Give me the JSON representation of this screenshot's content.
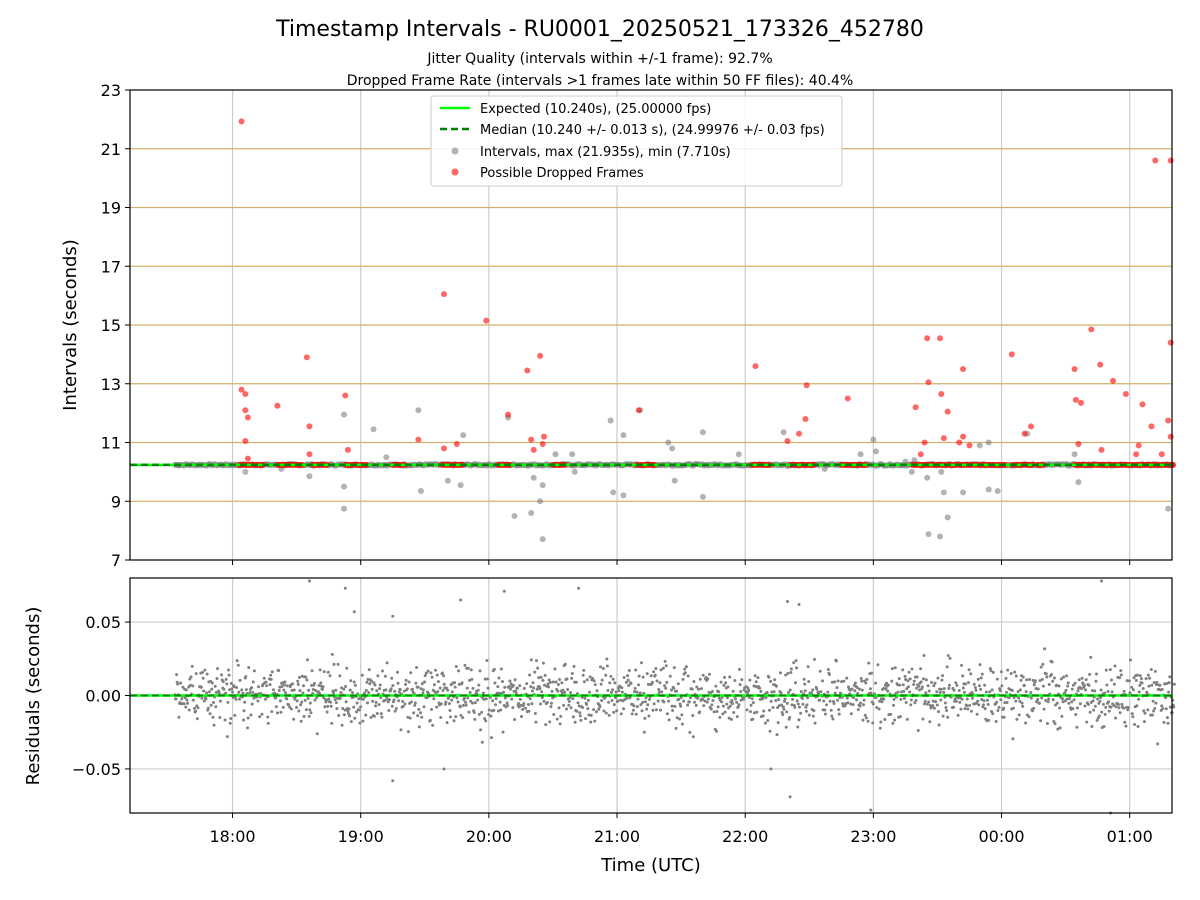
{
  "chart_data": [
    {
      "type": "scatter",
      "title": "Timestamp Intervals - RU0001_20250521_173326_452780",
      "subtitles": [
        "Jitter Quality (intervals within +/-1 frame): 92.7%",
        "Dropped Frame Rate (intervals >1 frames late within 50 FF files): 40.4%"
      ],
      "ylabel": "Intervals (seconds)",
      "ylim": [
        7,
        23
      ],
      "xlim_hours": [
        17.2,
        25.33
      ],
      "yticks": [
        "7",
        "9",
        "11",
        "13",
        "15",
        "17",
        "19",
        "21",
        "23"
      ],
      "grid": true,
      "legend_placement": "upper center",
      "lines": [
        {
          "name": "Expected (10.240s), (25.00000 fps)",
          "y": 10.24,
          "style": "solid",
          "color": "#00ff00"
        },
        {
          "name": "Median (10.240 +/- 0.013 s), (24.99976 +/- 0.03 fps)",
          "y": 10.24,
          "style": "dashed",
          "color": "#008000"
        }
      ],
      "series": [
        {
          "name": "Intervals, max (21.935s), min (7.710s)",
          "color": "#808080",
          "points": [
            [
              17.58,
              10.24
            ],
            [
              18.1,
              10.0
            ],
            [
              18.38,
              10.1
            ],
            [
              18.6,
              9.85
            ],
            [
              18.87,
              9.5
            ],
            [
              18.87,
              8.75
            ],
            [
              18.87,
              11.95
            ],
            [
              19.1,
              11.45
            ],
            [
              19.2,
              10.5
            ],
            [
              19.45,
              12.1
            ],
            [
              19.47,
              9.35
            ],
            [
              19.68,
              9.7
            ],
            [
              19.78,
              9.55
            ],
            [
              19.8,
              11.25
            ],
            [
              20.15,
              11.85
            ],
            [
              20.2,
              8.5
            ],
            [
              20.33,
              8.6
            ],
            [
              20.35,
              9.8
            ],
            [
              20.4,
              9.0
            ],
            [
              20.42,
              7.71
            ],
            [
              20.42,
              9.55
            ],
            [
              20.52,
              10.6
            ],
            [
              20.65,
              10.6
            ],
            [
              20.67,
              10.0
            ],
            [
              20.95,
              11.75
            ],
            [
              20.97,
              9.3
            ],
            [
              21.05,
              9.2
            ],
            [
              21.05,
              11.25
            ],
            [
              21.18,
              12.1
            ],
            [
              21.4,
              11.0
            ],
            [
              21.43,
              10.8
            ],
            [
              21.45,
              9.7
            ],
            [
              21.67,
              11.35
            ],
            [
              21.67,
              9.15
            ],
            [
              21.95,
              10.6
            ],
            [
              22.3,
              11.35
            ],
            [
              22.33,
              10.2
            ],
            [
              22.62,
              10.1
            ],
            [
              22.9,
              10.6
            ],
            [
              23.0,
              11.1
            ],
            [
              23.02,
              10.7
            ],
            [
              23.25,
              10.35
            ],
            [
              23.3,
              10.0
            ],
            [
              23.32,
              10.4
            ],
            [
              23.42,
              9.8
            ],
            [
              23.43,
              7.88
            ],
            [
              23.52,
              7.8
            ],
            [
              23.53,
              10.0
            ],
            [
              23.55,
              9.3
            ],
            [
              23.58,
              8.45
            ],
            [
              23.7,
              9.3
            ],
            [
              23.83,
              10.9
            ],
            [
              23.9,
              11.0
            ],
            [
              23.9,
              9.4
            ],
            [
              23.97,
              9.35
            ],
            [
              24.2,
              11.3
            ],
            [
              24.57,
              10.6
            ],
            [
              24.6,
              9.65
            ],
            [
              25.3,
              8.75
            ]
          ]
        },
        {
          "name": "Possible Dropped Frames",
          "color": "#ff0000",
          "points": [
            [
              18.07,
              21.93
            ],
            [
              18.07,
              12.8
            ],
            [
              18.1,
              12.65
            ],
            [
              18.1,
              12.1
            ],
            [
              18.12,
              11.85
            ],
            [
              18.1,
              11.05
            ],
            [
              18.12,
              10.45
            ],
            [
              18.35,
              12.25
            ],
            [
              18.58,
              13.9
            ],
            [
              18.6,
              11.55
            ],
            [
              18.6,
              10.6
            ],
            [
              18.88,
              12.6
            ],
            [
              18.9,
              10.75
            ],
            [
              19.45,
              11.1
            ],
            [
              19.65,
              16.05
            ],
            [
              19.65,
              10.8
            ],
            [
              19.75,
              10.95
            ],
            [
              19.98,
              15.15
            ],
            [
              20.15,
              11.95
            ],
            [
              20.3,
              13.45
            ],
            [
              20.33,
              11.1
            ],
            [
              20.4,
              13.95
            ],
            [
              20.43,
              11.2
            ],
            [
              20.42,
              10.95
            ],
            [
              20.35,
              10.75
            ],
            [
              21.17,
              12.1
            ],
            [
              22.08,
              13.6
            ],
            [
              22.33,
              11.05
            ],
            [
              22.42,
              11.3
            ],
            [
              22.47,
              11.8
            ],
            [
              22.48,
              12.95
            ],
            [
              22.8,
              12.5
            ],
            [
              23.33,
              12.2
            ],
            [
              23.37,
              10.6
            ],
            [
              23.4,
              11.0
            ],
            [
              23.42,
              14.55
            ],
            [
              23.43,
              13.05
            ],
            [
              23.52,
              14.55
            ],
            [
              23.53,
              12.65
            ],
            [
              23.58,
              12.05
            ],
            [
              23.55,
              11.15
            ],
            [
              23.67,
              11.0
            ],
            [
              23.7,
              13.5
            ],
            [
              23.7,
              11.2
            ],
            [
              23.75,
              10.9
            ],
            [
              24.08,
              14.0
            ],
            [
              24.18,
              11.3
            ],
            [
              24.23,
              11.55
            ],
            [
              24.57,
              13.5
            ],
            [
              24.58,
              12.45
            ],
            [
              24.62,
              12.35
            ],
            [
              24.6,
              10.95
            ],
            [
              24.7,
              14.85
            ],
            [
              24.77,
              13.65
            ],
            [
              24.78,
              10.75
            ],
            [
              24.87,
              13.1
            ],
            [
              24.97,
              12.65
            ],
            [
              25.07,
              10.9
            ],
            [
              25.05,
              10.6
            ],
            [
              25.1,
              12.3
            ],
            [
              25.17,
              11.55
            ],
            [
              25.2,
              20.6
            ],
            [
              25.25,
              10.6
            ],
            [
              25.3,
              11.75
            ],
            [
              25.32,
              11.2
            ],
            [
              25.32,
              14.4
            ],
            [
              25.32,
              20.6
            ]
          ],
          "clusters_at_10_24": [
            [
              18.05,
              18.25
            ],
            [
              18.35,
              18.55
            ],
            [
              18.62,
              18.75
            ],
            [
              18.88,
              19.05
            ],
            [
              19.25,
              19.35
            ],
            [
              19.63,
              19.8
            ],
            [
              20.07,
              20.17
            ],
            [
              20.5,
              20.6
            ],
            [
              21.15,
              21.3
            ],
            [
              22.05,
              22.2
            ],
            [
              22.35,
              22.55
            ],
            [
              22.75,
              22.95
            ],
            [
              23.3,
              23.38
            ],
            [
              23.38,
              24.03
            ],
            [
              24.08,
              24.25
            ],
            [
              24.28,
              24.33
            ],
            [
              24.57,
              25.35
            ]
          ]
        }
      ]
    },
    {
      "type": "scatter",
      "ylabel": "Residuals (seconds)",
      "xlabel": "Time (UTC)",
      "ylim": [
        -0.08,
        0.08
      ],
      "yticks": [
        "−0.05",
        "0.00",
        "0.05"
      ],
      "ytick_values": [
        -0.05,
        0.0,
        0.05
      ],
      "xticks": [
        "18:00",
        "19:00",
        "20:00",
        "21:00",
        "22:00",
        "23:00",
        "00:00",
        "01:00"
      ],
      "xtick_values": [
        18,
        19,
        20,
        21,
        22,
        23,
        24,
        25
      ],
      "grid": true,
      "zero_line_color": "#00ff00",
      "residual_color": "#808080",
      "x_range_hours": [
        17.55,
        25.35
      ],
      "residual_std_s": 0.013,
      "outliers": [
        [
          18.6,
          0.078
        ],
        [
          18.88,
          0.073
        ],
        [
          19.25,
          0.054
        ],
        [
          19.78,
          0.065
        ],
        [
          20.12,
          0.071
        ],
        [
          20.7,
          0.073
        ],
        [
          22.2,
          -0.05
        ],
        [
          22.33,
          0.064
        ],
        [
          22.42,
          0.062
        ],
        [
          22.35,
          -0.069
        ],
        [
          22.98,
          -0.078
        ],
        [
          24.85,
          -0.08
        ],
        [
          24.78,
          0.078
        ],
        [
          19.25,
          -0.058
        ],
        [
          19.65,
          -0.05
        ],
        [
          18.95,
          0.057
        ]
      ]
    }
  ]
}
